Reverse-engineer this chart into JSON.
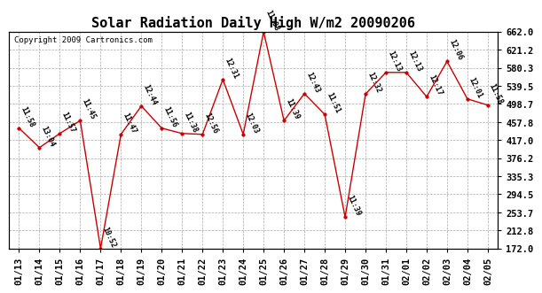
{
  "title": "Solar Radiation Daily High W/m2 20090206",
  "copyright": "Copyright 2009 Cartronics.com",
  "dates": [
    "01/13",
    "01/14",
    "01/15",
    "01/16",
    "01/17",
    "01/18",
    "01/19",
    "01/20",
    "01/21",
    "01/22",
    "01/23",
    "01/24",
    "01/25",
    "01/26",
    "01/27",
    "01/28",
    "01/29",
    "01/30",
    "01/31",
    "02/01",
    "02/02",
    "02/03",
    "02/04",
    "02/05"
  ],
  "values": [
    444,
    400,
    432,
    461,
    172,
    430,
    494,
    444,
    432,
    430,
    554,
    430,
    662,
    461,
    522,
    475,
    243,
    521,
    570,
    570,
    515,
    595,
    510,
    496
  ],
  "labels": [
    "11:58",
    "13:04",
    "11:57",
    "11:45",
    "10:52",
    "11:47",
    "12:44",
    "11:56",
    "11:38",
    "12:56",
    "12:31",
    "12:03",
    "11:08",
    "11:39",
    "12:43",
    "11:51",
    "11:39",
    "12:32",
    "12:13",
    "12:13",
    "12:17",
    "12:06",
    "12:01",
    "11:58"
  ],
  "line_color": "#cc0000",
  "marker_color": "#cc0000",
  "bg_color": "#ffffff",
  "grid_color": "#aaaaaa",
  "ylim": [
    172.0,
    662.0
  ],
  "yticks": [
    172.0,
    212.8,
    253.7,
    294.5,
    335.3,
    376.2,
    417.0,
    457.8,
    498.7,
    539.5,
    580.3,
    621.2,
    662.0
  ],
  "title_fontsize": 11,
  "label_fontsize": 6,
  "tick_fontsize": 7.5,
  "copyright_fontsize": 6.5
}
